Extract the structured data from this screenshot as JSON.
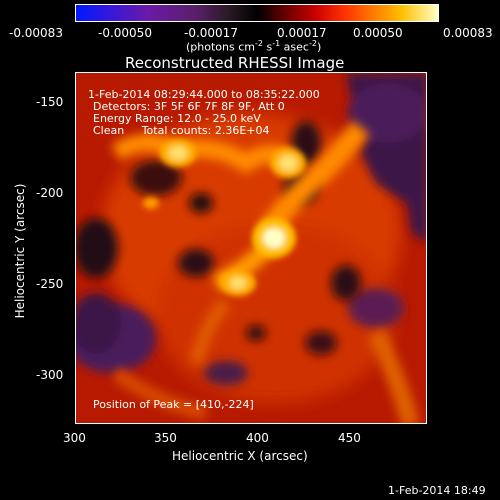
{
  "colorbar": {
    "ticks": [
      "-0.00083",
      "-0.00050",
      "-0.00017",
      "0.00017",
      "0.00050",
      "0.00083"
    ],
    "units_text": "(photons cm",
    "units_exp1": "-2",
    "units_mid": " s",
    "units_exp2": "-1",
    "units_mid2": " asec",
    "units_exp3": "-2",
    "units_end": ")"
  },
  "plot": {
    "title": "Reconstructed RHESSI Image",
    "annotations": {
      "time_range": "1-Feb-2014 08:29:44.000 to 08:35:22.000",
      "detectors": "Detectors: 3F 5F 6F 7F 8F 9F, Att 0",
      "energy": "Energy Range: 12.0 - 25.0 keV",
      "clean": "Clean     Total counts: 2.36E+04",
      "peak": "Position of Peak = [410,-224]"
    },
    "xlabel": "Heliocentric X (arcsec)",
    "ylabel": "Heliocentric Y (arcsec)",
    "xticks": [
      "300",
      "350",
      "400",
      "450"
    ],
    "yticks": [
      "-150",
      "-200",
      "-250",
      "-300"
    ]
  },
  "footer": {
    "timestamp": "1-Feb-2014 18:49"
  }
}
